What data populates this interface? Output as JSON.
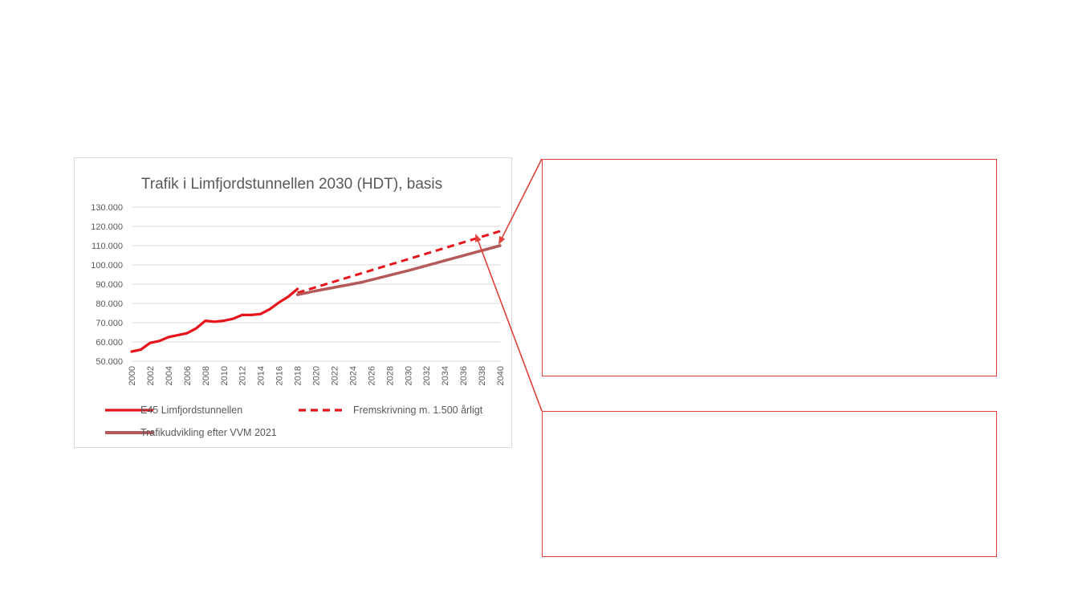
{
  "chart_data": {
    "type": "line",
    "title": "Trafik i Limfjordstunnellen 2030 (HDT), basis",
    "xlabel": "",
    "ylabel": "",
    "ylim": [
      50000,
      130000
    ],
    "xlim": [
      2000,
      2040
    ],
    "y_ticks": [
      "50.000",
      "60.000",
      "70.000",
      "80.000",
      "90.000",
      "100.000",
      "110.000",
      "120.000",
      "130.000"
    ],
    "x_ticks": [
      "2000",
      "2002",
      "2004",
      "2006",
      "2008",
      "2010",
      "2012",
      "2014",
      "2016",
      "2018",
      "2020",
      "2022",
      "2024",
      "2026",
      "2028",
      "2030",
      "2032",
      "2034",
      "2036",
      "2038",
      "2040"
    ],
    "grid": true,
    "legend_position": "bottom",
    "series": [
      {
        "name": "E45 Limfjordstunnellen",
        "style": "solid",
        "color": "#e8141c",
        "x": [
          2000,
          2001,
          2002,
          2003,
          2004,
          2005,
          2006,
          2007,
          2008,
          2009,
          2010,
          2011,
          2012,
          2013,
          2014,
          2015,
          2016,
          2017,
          2018
        ],
        "y": [
          55000,
          56000,
          59500,
          60500,
          62500,
          63500,
          64500,
          67000,
          71000,
          70500,
          71000,
          72000,
          74000,
          74000,
          74500,
          77000,
          80500,
          83500,
          87500
        ]
      },
      {
        "name": "Fremskrivning m. 1.500 årligt",
        "style": "dashed",
        "color": "#e8141c",
        "x": [
          2018,
          2040
        ],
        "y": [
          85500,
          117500
        ]
      },
      {
        "name": "Trafikudvikling efter VVM 2021",
        "style": "solid",
        "color": "#b55a5a",
        "x": [
          2018,
          2020,
          2025,
          2030,
          2035,
          2040
        ],
        "y": [
          84500,
          86500,
          91000,
          97000,
          103500,
          110000
        ]
      }
    ]
  },
  "annotations": {
    "border_color": "#e0403a"
  }
}
